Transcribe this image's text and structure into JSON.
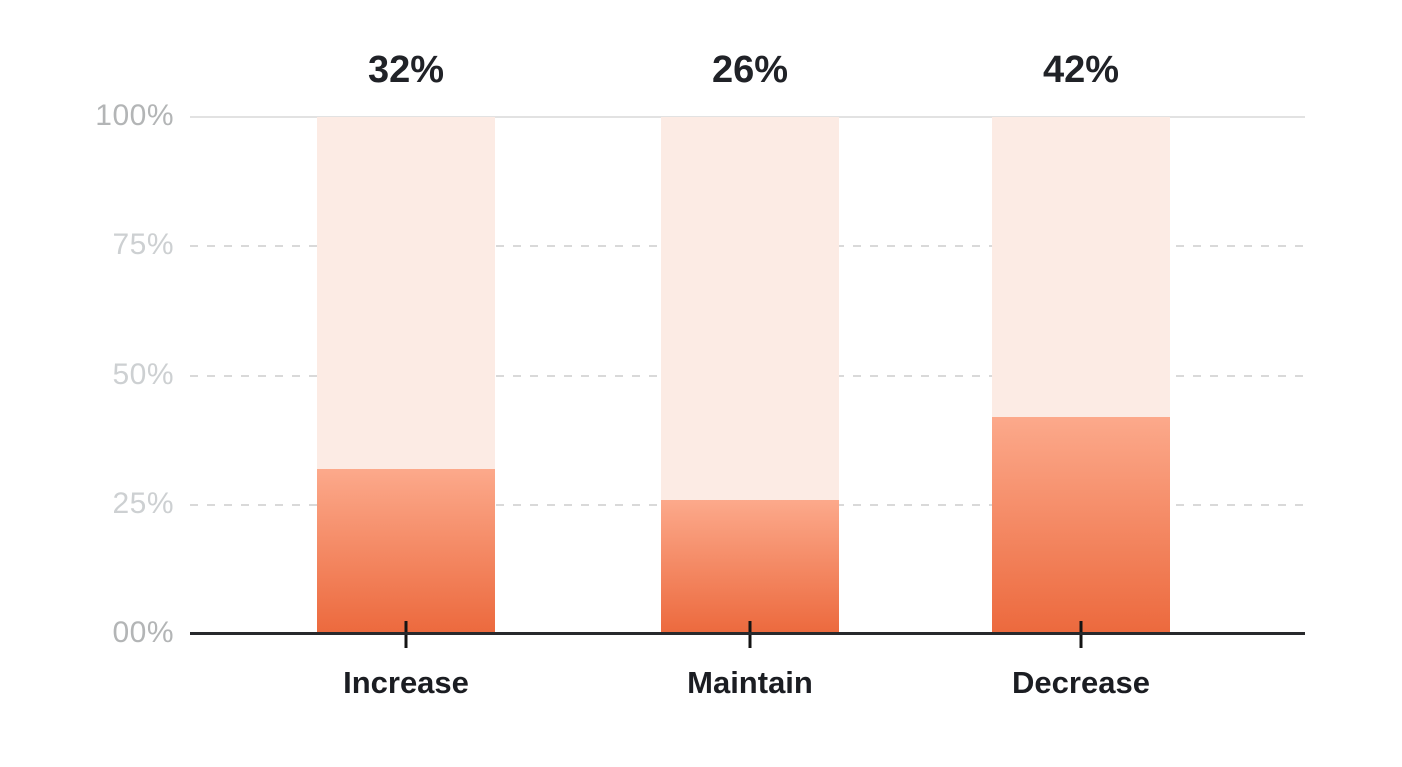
{
  "chart_data": {
    "type": "bar",
    "title": "",
    "xlabel": "",
    "ylabel": "",
    "categories": [
      "Increase",
      "Maintain",
      "Decrease"
    ],
    "values": [
      32,
      26,
      42
    ],
    "value_labels": [
      "32%",
      "26%",
      "42%"
    ],
    "y_axis": {
      "tick_labels": [
        "100%",
        "75%",
        "50%",
        "25%",
        "00%"
      ],
      "range": [
        0,
        100
      ],
      "gridlines": {
        "solid_at": [
          100
        ],
        "dashed_at": [
          75,
          50,
          25
        ]
      }
    },
    "layout": {
      "grid": "horizontal",
      "legend": "none",
      "bar_tick_marks": "crossing baseline at each bar center"
    }
  },
  "colors": {
    "background": "#ffffff",
    "bar_fill_top": "#fca98b",
    "bar_fill_bottom": "#ec693d",
    "bar_track": "#fcebe4",
    "gridline_solid": "#e2e2e2",
    "gridline_dashed": "#d9d9d9",
    "axis_line": "#28292c",
    "tick_mark": "#141414",
    "value_label": "#202227",
    "category_label": "#1b1d22",
    "y_label_strong": "#b3b5b6",
    "y_label_light": "#cdd0d2"
  }
}
